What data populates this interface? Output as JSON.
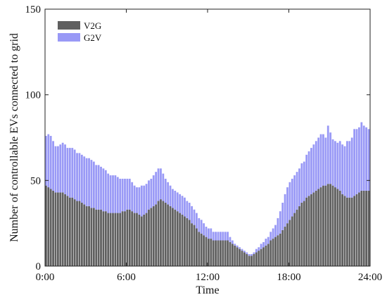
{
  "chart_data": {
    "type": "bar",
    "stacked": true,
    "xlabel": "Time",
    "ylabel": "Number of controllable EVs connected to grid",
    "xlim": [
      0,
      24
    ],
    "ylim": [
      0,
      150
    ],
    "xticks": [
      {
        "value": 0,
        "label": "0:00"
      },
      {
        "value": 6,
        "label": "6:00"
      },
      {
        "value": 12,
        "label": "12:00"
      },
      {
        "value": 18,
        "label": "18:00"
      },
      {
        "value": 24,
        "label": "24:00"
      }
    ],
    "yticks": [
      0,
      50,
      100,
      150
    ],
    "grid": false,
    "legend_position": "top-left",
    "interval_hours": 0.25,
    "series": [
      {
        "name": "V2G",
        "color": "#5f5f5f",
        "values": [
          47,
          46,
          45,
          44,
          43,
          43,
          43,
          43,
          42,
          41,
          40,
          40,
          39,
          38,
          38,
          37,
          36,
          35,
          35,
          34,
          34,
          33,
          33,
          33,
          32,
          32,
          31,
          31,
          31,
          31,
          31,
          31,
          32,
          32,
          33,
          33,
          32,
          31,
          31,
          30,
          29,
          30,
          31,
          33,
          34,
          35,
          36,
          38,
          39,
          38,
          37,
          36,
          35,
          34,
          33,
          32,
          31,
          30,
          29,
          28,
          27,
          25,
          24,
          22,
          20,
          19,
          18,
          17,
          16,
          16,
          15,
          15,
          15,
          15,
          15,
          15,
          15,
          14,
          13,
          12,
          11,
          10,
          9,
          8,
          7,
          6,
          6,
          7,
          8,
          9,
          10,
          11,
          12,
          13,
          15,
          16,
          17,
          18,
          19,
          21,
          23,
          25,
          27,
          29,
          31,
          33,
          35,
          37,
          38,
          40,
          41,
          42,
          43,
          44,
          45,
          46,
          47,
          47,
          48,
          48,
          47,
          46,
          45,
          44,
          42,
          41,
          40,
          40,
          40,
          41,
          42,
          43,
          44,
          44,
          44,
          44
        ]
      },
      {
        "name": "G2V",
        "color": "#9999f6",
        "values": [
          29,
          31,
          31,
          29,
          27,
          27,
          28,
          29,
          29,
          28,
          29,
          29,
          29,
          28,
          28,
          28,
          28,
          28,
          28,
          28,
          27,
          26,
          26,
          25,
          25,
          24,
          23,
          22,
          22,
          22,
          21,
          20,
          19,
          19,
          18,
          18,
          17,
          16,
          15,
          16,
          18,
          17,
          17,
          17,
          17,
          18,
          19,
          19,
          18,
          16,
          14,
          13,
          12,
          11,
          11,
          11,
          11,
          11,
          11,
          10,
          10,
          10,
          9,
          9,
          8,
          8,
          7,
          6,
          6,
          6,
          5,
          5,
          5,
          5,
          5,
          5,
          5,
          3,
          2,
          1,
          1,
          1,
          1,
          1,
          1,
          1,
          1,
          1,
          2,
          2,
          3,
          3,
          4,
          4,
          5,
          6,
          7,
          10,
          13,
          16,
          19,
          21,
          22,
          22,
          22,
          22,
          22,
          23,
          23,
          25,
          26,
          27,
          28,
          29,
          30,
          31,
          30,
          28,
          34,
          30,
          27,
          27,
          27,
          29,
          29,
          29,
          33,
          33,
          35,
          39,
          38,
          38,
          40,
          38,
          37,
          36
        ]
      }
    ]
  }
}
